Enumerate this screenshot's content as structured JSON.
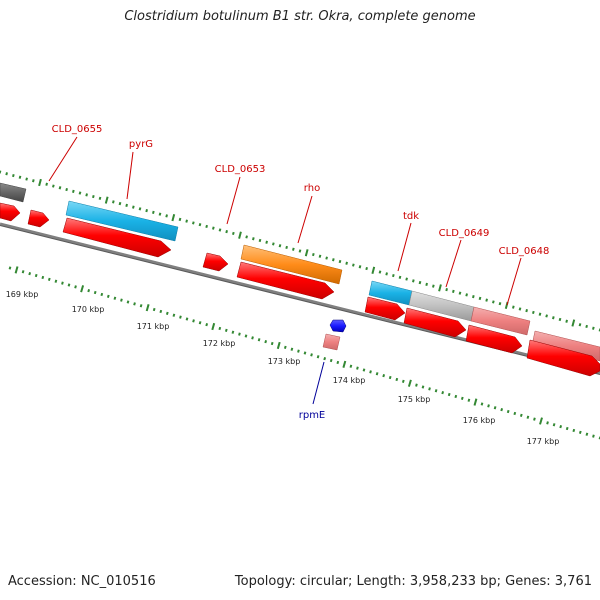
{
  "title": "Clostridium botulinum B1 str. Okra, complete genome",
  "footer": {
    "accession": "Accession: NC_010516",
    "summary": "Topology: circular; Length: 3,958,233 bp; Genes: 3,761"
  },
  "scale_labels": [
    "169 kbp",
    "170 kbp",
    "171 kbp",
    "172 kbp",
    "173 kbp",
    "174 kbp",
    "175 kbp",
    "176 kbp",
    "177 kbp"
  ],
  "gene_labels": [
    {
      "text": "CLD_0655",
      "color": "#cc0000"
    },
    {
      "text": "pyrG",
      "color": "#cc0000"
    },
    {
      "text": "CLD_0653",
      "color": "#cc0000"
    },
    {
      "text": "rho",
      "color": "#cc0000"
    },
    {
      "text": "tdk",
      "color": "#cc0000"
    },
    {
      "text": "CLD_0649",
      "color": "#cc0000"
    },
    {
      "text": "CLD_0648",
      "color": "#cc0000"
    },
    {
      "text": "rpmE",
      "color": "#000099"
    }
  ],
  "colors": {
    "backbone": "#808080",
    "cds": "#ff0000",
    "cds_light": "#ee8080",
    "cds_blue": "#1a1aff",
    "gene_cyan": "#1ab2e6",
    "gene_orange": "#ff8c1a",
    "gene_gray": "#c0c0c0",
    "gene_dark": "#666666",
    "tick": "#338833"
  }
}
